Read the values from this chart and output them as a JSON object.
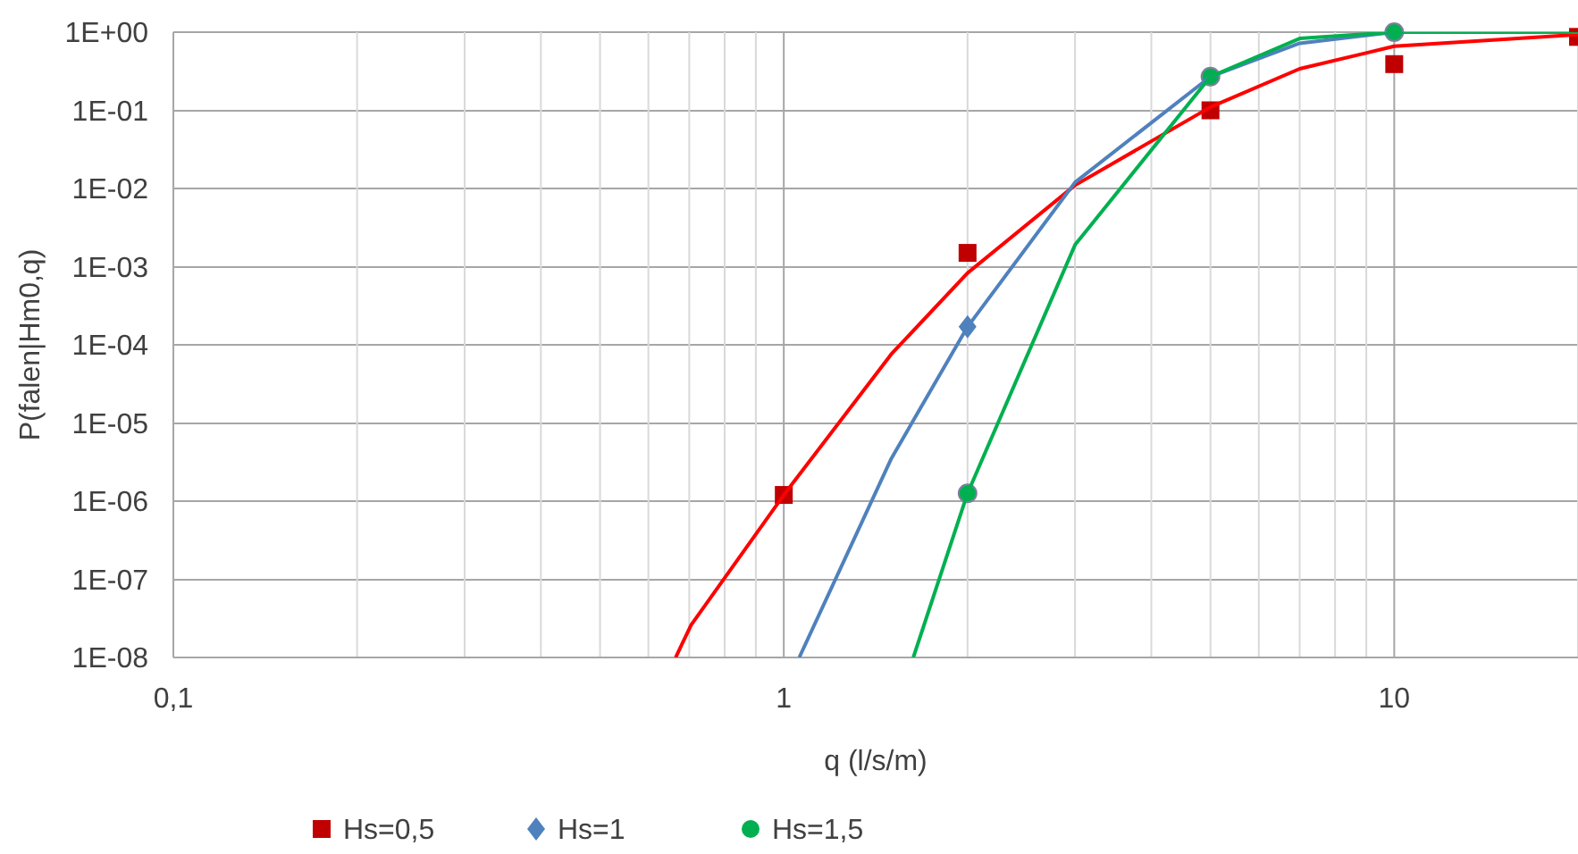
{
  "chart_data": {
    "type": "scatter",
    "xlabel": "q (l/s/m)",
    "ylabel": "P(falen|Hm0,q)",
    "log": "xy",
    "grid": true,
    "legend": "bottom",
    "xlim": [
      0.1,
      20
    ],
    "ylim": [
      1e-08,
      1
    ],
    "xticks": [
      {
        "value": 0.1,
        "label": "0,1"
      },
      {
        "value": 0.2,
        "label": null
      },
      {
        "value": 0.3,
        "label": null
      },
      {
        "value": 0.4,
        "label": null
      },
      {
        "value": 0.5,
        "label": null
      },
      {
        "value": 0.6,
        "label": null
      },
      {
        "value": 0.7,
        "label": null
      },
      {
        "value": 0.8,
        "label": null
      },
      {
        "value": 0.9,
        "label": null
      },
      1,
      {
        "value": 2,
        "label": null
      },
      {
        "value": 3,
        "label": null
      },
      {
        "value": 4,
        "label": null
      },
      {
        "value": 5,
        "label": null
      },
      {
        "value": 6,
        "label": null
      },
      {
        "value": 7,
        "label": null
      },
      {
        "value": 8,
        "label": null
      },
      {
        "value": 9,
        "label": null
      },
      10,
      {
        "value": 20,
        "label": null
      }
    ],
    "yticks": [
      {
        "value": 1e-08,
        "label": "1E-08"
      },
      {
        "value": 1e-07,
        "label": "1E-07"
      },
      {
        "value": 1e-06,
        "label": "1E-06"
      },
      {
        "value": 1e-05,
        "label": "1E-05"
      },
      {
        "value": 0.0001,
        "label": "1E-04"
      },
      {
        "value": 0.001,
        "label": "1E-03"
      },
      {
        "value": 0.01,
        "label": "1E-02"
      },
      {
        "value": 0.1,
        "label": "1E-01"
      },
      {
        "value": 1,
        "label": "1E+00"
      }
    ],
    "series": [
      {
        "type": "line",
        "marker": "none",
        "color": "#ff0000",
        "x": [
          0.665,
          0.705,
          1,
          1.5,
          2,
          3,
          5,
          7,
          10,
          20
        ],
        "values": [
          1e-08,
          2.6e-08,
          1.2e-06,
          7.6e-05,
          0.00083,
          0.011,
          0.11,
          0.34,
          0.66,
          0.93
        ]
      },
      {
        "type": "line",
        "marker": "none",
        "color": "#4f81bd",
        "x": [
          1.06,
          1.5,
          2,
          3,
          5,
          7,
          10,
          20
        ],
        "values": [
          1e-08,
          3.5e-06,
          0.00017,
          0.012,
          0.27,
          0.72,
          1,
          1
        ]
      },
      {
        "type": "line",
        "marker": "none",
        "color": "#00b050",
        "x": [
          1.63,
          2,
          3,
          5,
          7,
          10,
          20
        ],
        "values": [
          1e-08,
          1.26e-06,
          0.0019,
          0.27,
          0.83,
          1,
          1
        ]
      },
      {
        "name": "Hs=0,5",
        "marker": "square",
        "color": "#c00000",
        "x": [
          1,
          2,
          5,
          10,
          20
        ],
        "values": [
          1.2e-06,
          0.0015,
          0.1,
          0.39,
          0.87
        ]
      },
      {
        "name": "Hs=1",
        "marker": "diamond",
        "color": "#4f81bd",
        "x": [
          2
        ],
        "values": [
          0.00017
        ]
      },
      {
        "name": "Hs=1,5",
        "marker": "circle",
        "color": "#00b050",
        "x": [
          2,
          5,
          10
        ],
        "values": [
          1.26e-06,
          0.27,
          1
        ]
      }
    ]
  }
}
